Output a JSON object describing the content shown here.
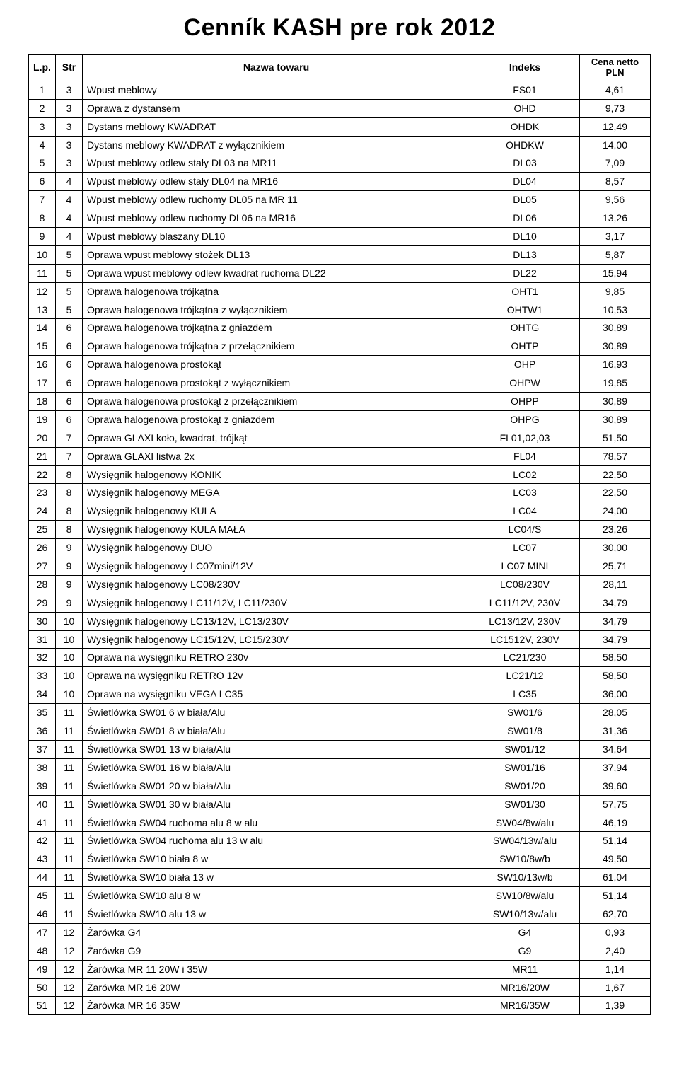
{
  "title": "Cenník KASH pre rok 2012",
  "headers": {
    "lp": "L.p.",
    "str": "Str",
    "name": "Nazwa towaru",
    "index": "Indeks",
    "price": "Cena netto PLN"
  },
  "rows": [
    {
      "lp": "1",
      "str": "3",
      "name": "Wpust meblowy",
      "idx": "FS01",
      "price": "4,61"
    },
    {
      "lp": "2",
      "str": "3",
      "name": "Oprawa z dystansem",
      "idx": "OHD",
      "price": "9,73"
    },
    {
      "lp": "3",
      "str": "3",
      "name": "Dystans meblowy KWADRAT",
      "idx": "OHDK",
      "price": "12,49"
    },
    {
      "lp": "4",
      "str": "3",
      "name": "Dystans meblowy KWADRAT z wyłącznikiem",
      "idx": "OHDKW",
      "price": "14,00"
    },
    {
      "lp": "5",
      "str": "3",
      "name": "Wpust meblowy odlew stały DL03 na MR11",
      "idx": "DL03",
      "price": "7,09"
    },
    {
      "lp": "6",
      "str": "4",
      "name": "Wpust meblowy odlew stały DL04 na MR16",
      "idx": "DL04",
      "price": "8,57"
    },
    {
      "lp": "7",
      "str": "4",
      "name": "Wpust meblowy odlew ruchomy DL05 na MR 11",
      "idx": "DL05",
      "price": "9,56"
    },
    {
      "lp": "8",
      "str": "4",
      "name": "Wpust meblowy odlew ruchomy DL06 na MR16",
      "idx": "DL06",
      "price": "13,26"
    },
    {
      "lp": "9",
      "str": "4",
      "name": "Wpust meblowy blaszany DL10",
      "idx": "DL10",
      "price": "3,17"
    },
    {
      "lp": "10",
      "str": "5",
      "name": "Oprawa wpust meblowy stożek DL13",
      "idx": "DL13",
      "price": "5,87"
    },
    {
      "lp": "11",
      "str": "5",
      "name": "Oprawa wpust meblowy odlew kwadrat ruchoma DL22",
      "idx": "DL22",
      "price": "15,94"
    },
    {
      "lp": "12",
      "str": "5",
      "name": "Oprawa halogenowa trójkątna",
      "idx": "OHT1",
      "price": "9,85"
    },
    {
      "lp": "13",
      "str": "5",
      "name": "Oprawa halogenowa trójkątna z wyłącznikiem",
      "idx": "OHTW1",
      "price": "10,53"
    },
    {
      "lp": "14",
      "str": "6",
      "name": "Oprawa halogenowa trójkątna z gniazdem",
      "idx": "OHTG",
      "price": "30,89"
    },
    {
      "lp": "15",
      "str": "6",
      "name": "Oprawa halogenowa trójkątna z przełącznikiem",
      "idx": "OHTP",
      "price": "30,89"
    },
    {
      "lp": "16",
      "str": "6",
      "name": "Oprawa halogenowa prostokąt",
      "idx": "OHP",
      "price": "16,93"
    },
    {
      "lp": "17",
      "str": "6",
      "name": "Oprawa halogenowa prostokąt z wyłącznikiem",
      "idx": "OHPW",
      "price": "19,85"
    },
    {
      "lp": "18",
      "str": "6",
      "name": "Oprawa halogenowa prostokąt z przełącznikiem",
      "idx": "OHPP",
      "price": "30,89"
    },
    {
      "lp": "19",
      "str": "6",
      "name": "Oprawa halogenowa prostokąt z gniazdem",
      "idx": "OHPG",
      "price": "30,89"
    },
    {
      "lp": "20",
      "str": "7",
      "name": "Oprawa GLAXI koło, kwadrat, trójkąt",
      "idx": "FL01,02,03",
      "price": "51,50"
    },
    {
      "lp": "21",
      "str": "7",
      "name": "Oprawa GLAXI listwa 2x",
      "idx": "FL04",
      "price": "78,57"
    },
    {
      "lp": "22",
      "str": "8",
      "name": "Wysięgnik halogenowy KONIK",
      "idx": "LC02",
      "price": "22,50"
    },
    {
      "lp": "23",
      "str": "8",
      "name": "Wysięgnik halogenowy MEGA",
      "idx": "LC03",
      "price": "22,50"
    },
    {
      "lp": "24",
      "str": "8",
      "name": "Wysięgnik halogenowy KULA",
      "idx": "LC04",
      "price": "24,00"
    },
    {
      "lp": "25",
      "str": "8",
      "name": "Wysięgnik halogenowy KULA MAŁA",
      "idx": "LC04/S",
      "price": "23,26"
    },
    {
      "lp": "26",
      "str": "9",
      "name": "Wysięgnik halogenowy DUO",
      "idx": "LC07",
      "price": "30,00"
    },
    {
      "lp": "27",
      "str": "9",
      "name": "Wysięgnik halogenowy LC07mini/12V",
      "idx": "LC07 MINI",
      "price": "25,71"
    },
    {
      "lp": "28",
      "str": "9",
      "name": "Wysięgnik halogenowy LC08/230V",
      "idx": "LC08/230V",
      "price": "28,11"
    },
    {
      "lp": "29",
      "str": "9",
      "name": "Wysięgnik halogenowy LC11/12V,  LC11/230V",
      "idx": "LC11/12V, 230V",
      "price": "34,79"
    },
    {
      "lp": "30",
      "str": "10",
      "name": "Wysięgnik halogenowy LC13/12V, LC13/230V",
      "idx": "LC13/12V, 230V",
      "price": "34,79"
    },
    {
      "lp": "31",
      "str": "10",
      "name": "Wysięgnik halogenowy LC15/12V, LC15/230V",
      "idx": "LC1512V, 230V",
      "price": "34,79"
    },
    {
      "lp": "32",
      "str": "10",
      "name": "Oprawa na wysięgniku RETRO 230v",
      "idx": "LC21/230",
      "price": "58,50"
    },
    {
      "lp": "33",
      "str": "10",
      "name": "Oprawa na wysięgniku RETRO 12v",
      "idx": "LC21/12",
      "price": "58,50"
    },
    {
      "lp": "34",
      "str": "10",
      "name": "Oprawa na wysięgniku VEGA LC35",
      "idx": "LC35",
      "price": "36,00"
    },
    {
      "lp": "35",
      "str": "11",
      "name": "Świetlówka SW01 6 w  biała/Alu",
      "idx": "SW01/6",
      "price": "28,05"
    },
    {
      "lp": "36",
      "str": "11",
      "name": "Świetlówka SW01 8 w biała/Alu",
      "idx": "SW01/8",
      "price": "31,36"
    },
    {
      "lp": "37",
      "str": "11",
      "name": "Świetlówka SW01 13 w biała/Alu",
      "idx": "SW01/12",
      "price": "34,64"
    },
    {
      "lp": "38",
      "str": "11",
      "name": "Świetlówka SW01 16 w biała/Alu",
      "idx": "SW01/16",
      "price": "37,94"
    },
    {
      "lp": "39",
      "str": "11",
      "name": "Świetlówka SW01 20 w biała/Alu",
      "idx": "SW01/20",
      "price": "39,60"
    },
    {
      "lp": "40",
      "str": "11",
      "name": "Świetlówka SW01 30 w biała/Alu",
      "idx": "SW01/30",
      "price": "57,75"
    },
    {
      "lp": "41",
      "str": "11",
      "name": "Świetlówka SW04 ruchoma alu 8 w alu",
      "idx": "SW04/8w/alu",
      "price": "46,19"
    },
    {
      "lp": "42",
      "str": "11",
      "name": "Świetlówka SW04 ruchoma alu 13 w alu",
      "idx": "SW04/13w/alu",
      "price": "51,14"
    },
    {
      "lp": "43",
      "str": "11",
      "name": "Świetlówka SW10 biała 8 w",
      "idx": "SW10/8w/b",
      "price": "49,50"
    },
    {
      "lp": "44",
      "str": "11",
      "name": "Świetlówka SW10 biała 13 w",
      "idx": "SW10/13w/b",
      "price": "61,04"
    },
    {
      "lp": "45",
      "str": "11",
      "name": "Świetlówka SW10 alu 8 w",
      "idx": "SW10/8w/alu",
      "price": "51,14"
    },
    {
      "lp": "46",
      "str": "11",
      "name": "Świetlówka SW10 alu 13 w",
      "idx": "SW10/13w/alu",
      "price": "62,70"
    },
    {
      "lp": "47",
      "str": "12",
      "name": "Żarówka G4",
      "idx": "G4",
      "price": "0,93"
    },
    {
      "lp": "48",
      "str": "12",
      "name": "Żarówka G9",
      "idx": "G9",
      "price": "2,40"
    },
    {
      "lp": "49",
      "str": "12",
      "name": "Żarówka MR 11 20W i 35W",
      "idx": "MR11",
      "price": "1,14"
    },
    {
      "lp": "50",
      "str": "12",
      "name": "Żarówka MR 16 20W",
      "idx": "MR16/20W",
      "price": "1,67"
    },
    {
      "lp": "51",
      "str": "12",
      "name": "Żarówka MR 16 35W",
      "idx": "MR16/35W",
      "price": "1,39"
    }
  ],
  "colors": {
    "background": "#ffffff",
    "text": "#000000",
    "border": "#000000"
  }
}
